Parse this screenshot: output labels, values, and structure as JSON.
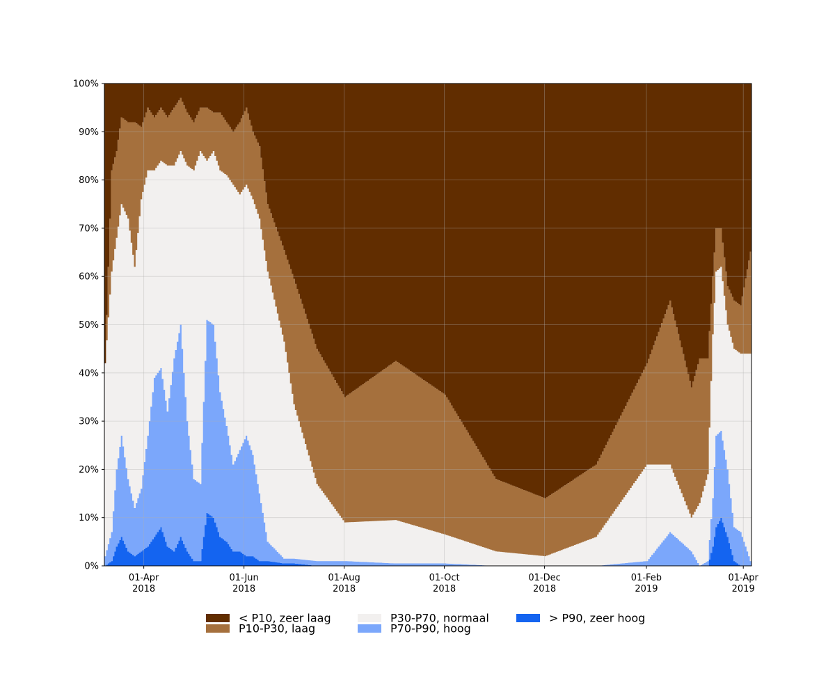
{
  "chart_data": {
    "type": "area",
    "title": "",
    "xlabel": "",
    "ylabel": "",
    "stacking": "percent",
    "grid": true,
    "legend_position": "bottom",
    "x_ticks": [
      {
        "date": "2018-04-01",
        "label_line1": "01-Apr",
        "label_line2": "2018"
      },
      {
        "date": "2018-06-01",
        "label_line1": "01-Jun",
        "label_line2": "2018"
      },
      {
        "date": "2018-08-01",
        "label_line1": "01-Aug",
        "label_line2": "2018"
      },
      {
        "date": "2018-10-01",
        "label_line1": "01-Oct",
        "label_line2": "2018"
      },
      {
        "date": "2018-12-01",
        "label_line1": "01-Dec",
        "label_line2": "2018"
      },
      {
        "date": "2019-02-01",
        "label_line1": "01-Feb",
        "label_line2": "2019"
      },
      {
        "date": "2019-04-01",
        "label_line1": "01-Apr",
        "label_line2": "2019"
      }
    ],
    "y_ticks": [
      "0%",
      "10%",
      "20%",
      "30%",
      "40%",
      "50%",
      "60%",
      "70%",
      "80%",
      "90%",
      "100%"
    ],
    "xlim": [
      "2018-03-08",
      "2019-04-06"
    ],
    "ylim": [
      0,
      100
    ],
    "series": [
      {
        "name": "> P90, zeer hoog",
        "color": "#1464f0",
        "x": [
          "2018-03-08",
          "2018-03-12",
          "2018-03-15",
          "2018-03-18",
          "2018-03-22",
          "2018-03-26",
          "2018-03-30",
          "2018-04-03",
          "2018-04-07",
          "2018-04-11",
          "2018-04-15",
          "2018-04-19",
          "2018-04-23",
          "2018-04-27",
          "2018-05-01",
          "2018-05-05",
          "2018-05-09",
          "2018-05-13",
          "2018-05-17",
          "2018-05-21",
          "2018-05-25",
          "2018-05-29",
          "2018-06-02",
          "2018-06-06",
          "2018-06-10",
          "2018-06-15",
          "2018-06-25",
          "2018-07-01",
          "2018-07-15",
          "2018-08-01",
          "2018-09-01",
          "2018-10-01",
          "2018-11-01",
          "2018-12-01",
          "2019-01-01",
          "2019-02-01",
          "2019-02-15",
          "2019-02-28",
          "2019-03-05",
          "2019-03-10",
          "2019-03-13",
          "2019-03-15",
          "2019-03-18",
          "2019-03-22",
          "2019-03-26",
          "2019-03-30",
          "2019-04-06"
        ],
        "values": [
          0,
          1,
          4,
          6,
          3,
          2,
          3,
          4,
          6,
          8,
          4,
          3,
          6,
          3,
          1,
          1,
          11,
          10,
          6,
          5,
          3,
          3,
          2,
          2,
          1,
          1,
          0.5,
          0.5,
          0,
          0,
          0,
          0,
          0,
          0,
          0,
          0,
          0,
          0,
          0,
          0,
          4,
          8,
          10,
          6,
          1,
          0,
          0
        ]
      },
      {
        "name": "P70-P90, hoog",
        "color": "#7ba7fb",
        "x": [
          "2018-03-08",
          "2018-03-12",
          "2018-03-15",
          "2018-03-18",
          "2018-03-22",
          "2018-03-26",
          "2018-03-30",
          "2018-04-03",
          "2018-04-07",
          "2018-04-11",
          "2018-04-15",
          "2018-04-19",
          "2018-04-23",
          "2018-04-27",
          "2018-05-01",
          "2018-05-05",
          "2018-05-09",
          "2018-05-13",
          "2018-05-17",
          "2018-05-21",
          "2018-05-25",
          "2018-05-29",
          "2018-06-02",
          "2018-06-06",
          "2018-06-10",
          "2018-06-15",
          "2018-06-25",
          "2018-07-01",
          "2018-07-15",
          "2018-08-01",
          "2018-09-01",
          "2018-10-01",
          "2018-11-01",
          "2018-12-01",
          "2019-01-01",
          "2019-02-01",
          "2019-02-15",
          "2019-02-28",
          "2019-03-05",
          "2019-03-10",
          "2019-03-13",
          "2019-03-15",
          "2019-03-18",
          "2019-03-22",
          "2019-03-26",
          "2019-03-30",
          "2019-04-06"
        ],
        "values": [
          2,
          6,
          16,
          21,
          15,
          10,
          13,
          23,
          33,
          33,
          28,
          40,
          44,
          27,
          17,
          16,
          40,
          40,
          30,
          24,
          18,
          21,
          25,
          21,
          14,
          4,
          1,
          1,
          1,
          1,
          0.5,
          0.5,
          0,
          0,
          0,
          1,
          7,
          3,
          0,
          1,
          10,
          19,
          18,
          14,
          7,
          7,
          0
        ]
      },
      {
        "name": "P30-P70, normaal",
        "color": "#f2f0ef",
        "x": [
          "2018-03-08",
          "2018-03-12",
          "2018-03-15",
          "2018-03-18",
          "2018-03-22",
          "2018-03-26",
          "2018-03-30",
          "2018-04-03",
          "2018-04-07",
          "2018-04-11",
          "2018-04-15",
          "2018-04-19",
          "2018-04-23",
          "2018-04-27",
          "2018-05-01",
          "2018-05-05",
          "2018-05-09",
          "2018-05-13",
          "2018-05-17",
          "2018-05-21",
          "2018-05-25",
          "2018-05-29",
          "2018-06-02",
          "2018-06-06",
          "2018-06-10",
          "2018-06-15",
          "2018-06-25",
          "2018-07-01",
          "2018-07-15",
          "2018-08-01",
          "2018-09-01",
          "2018-10-01",
          "2018-11-01",
          "2018-12-01",
          "2019-01-01",
          "2019-02-01",
          "2019-02-15",
          "2019-02-28",
          "2019-03-05",
          "2019-03-10",
          "2019-03-13",
          "2019-03-15",
          "2019-03-18",
          "2019-03-22",
          "2019-03-26",
          "2019-03-30",
          "2019-04-06"
        ],
        "values": [
          40,
          54,
          48,
          48,
          54,
          50,
          60,
          55,
          43,
          43,
          51,
          40,
          36,
          53,
          64,
          69,
          33,
          36,
          46,
          52,
          58,
          53,
          52,
          53,
          57,
          56,
          45,
          32,
          16,
          8,
          9,
          6,
          3,
          2,
          6,
          20,
          14,
          7,
          13,
          18,
          34,
          34,
          34,
          30,
          37,
          37,
          44
        ]
      },
      {
        "name": "P10-P30, laag",
        "color": "#a5703d",
        "x": [
          "2018-03-08",
          "2018-03-12",
          "2018-03-15",
          "2018-03-18",
          "2018-03-22",
          "2018-03-26",
          "2018-03-30",
          "2018-04-03",
          "2018-04-07",
          "2018-04-11",
          "2018-04-15",
          "2018-04-19",
          "2018-04-23",
          "2018-04-27",
          "2018-05-01",
          "2018-05-05",
          "2018-05-09",
          "2018-05-13",
          "2018-05-17",
          "2018-05-21",
          "2018-05-25",
          "2018-05-29",
          "2018-06-02",
          "2018-06-06",
          "2018-06-10",
          "2018-06-15",
          "2018-06-25",
          "2018-07-01",
          "2018-07-15",
          "2018-08-01",
          "2018-09-01",
          "2018-10-01",
          "2018-11-01",
          "2018-12-01",
          "2019-01-01",
          "2019-02-01",
          "2019-02-15",
          "2019-02-28",
          "2019-03-05",
          "2019-03-10",
          "2019-03-13",
          "2019-03-15",
          "2019-03-18",
          "2019-03-22",
          "2019-03-26",
          "2019-03-30",
          "2019-04-06"
        ],
        "values": [
          0,
          21,
          18,
          18,
          20,
          30,
          15,
          13,
          11,
          11,
          10,
          12,
          11,
          11,
          10,
          9,
          11,
          8,
          12,
          11,
          11,
          15,
          16,
          14,
          15,
          14,
          19,
          26,
          28,
          26,
          33,
          29,
          15,
          12,
          15,
          21,
          34,
          27,
          30,
          24,
          12,
          9,
          8,
          8,
          10,
          10,
          23
        ]
      },
      {
        "name": "< P10, zeer laag",
        "color": "#612d00",
        "x": [
          "2018-03-08",
          "2018-03-12",
          "2018-03-15",
          "2018-03-18",
          "2018-03-22",
          "2018-03-26",
          "2018-03-30",
          "2018-04-03",
          "2018-04-07",
          "2018-04-11",
          "2018-04-15",
          "2018-04-19",
          "2018-04-23",
          "2018-04-27",
          "2018-05-01",
          "2018-05-05",
          "2018-05-09",
          "2018-05-13",
          "2018-05-17",
          "2018-05-21",
          "2018-05-25",
          "2018-05-29",
          "2018-06-02",
          "2018-06-06",
          "2018-06-10",
          "2018-06-15",
          "2018-06-25",
          "2018-07-01",
          "2018-07-15",
          "2018-08-01",
          "2018-09-01",
          "2018-10-01",
          "2018-11-01",
          "2018-12-01",
          "2019-01-01",
          "2019-02-01",
          "2019-02-15",
          "2019-02-28",
          "2019-03-05",
          "2019-03-10",
          "2019-03-13",
          "2019-03-15",
          "2019-03-18",
          "2019-03-22",
          "2019-03-26",
          "2019-03-30",
          "2019-04-06"
        ],
        "values": [
          58,
          18,
          14,
          7,
          8,
          8,
          9,
          5,
          7,
          5,
          7,
          5,
          3,
          6,
          8,
          5,
          5,
          6,
          6,
          8,
          10,
          8,
          5,
          10,
          13,
          25,
          34,
          40,
          55,
          65,
          57,
          64,
          82,
          86,
          79,
          58,
          45,
          63,
          57,
          57,
          40,
          30,
          30,
          41,
          46,
          46,
          33
        ]
      }
    ],
    "legend": [
      {
        "label": "< P10, zeer laag",
        "color": "#612d00"
      },
      {
        "label": "P10-P30, laag",
        "color": "#a5703d"
      },
      {
        "label": "P30-P70, normaal",
        "color": "#f2f0ef"
      },
      {
        "label": "P70-P90, hoog",
        "color": "#7ba7fb"
      },
      {
        "label": "> P90, zeer hoog",
        "color": "#1464f0"
      }
    ]
  }
}
